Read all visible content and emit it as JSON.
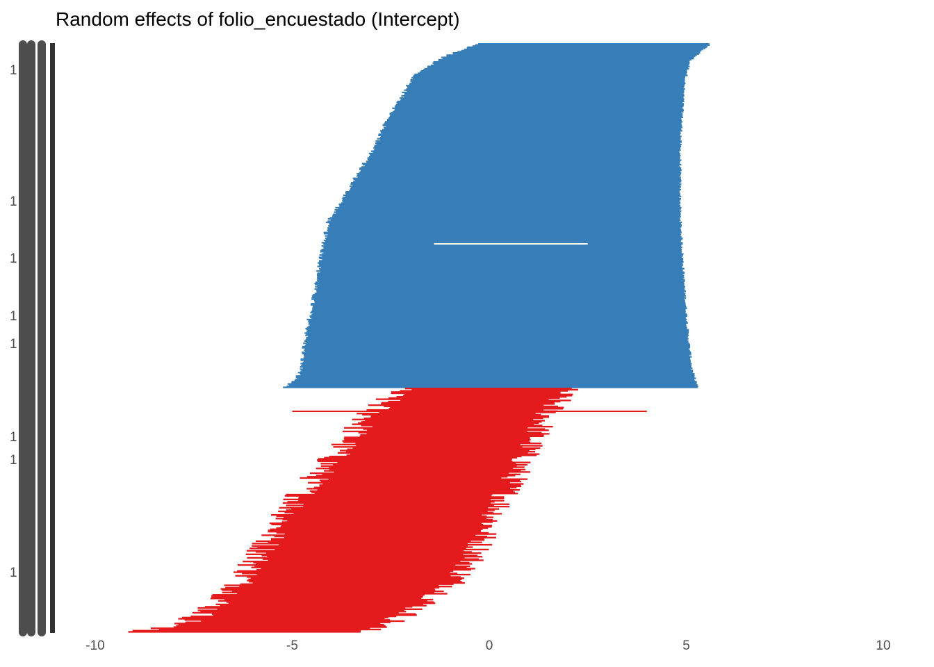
{
  "chart_data": {
    "type": "forest",
    "title": "Random effects of folio_encuestado (Intercept)",
    "xlabel": "",
    "ylabel": "",
    "xlim": [
      -10.0,
      10.0
    ],
    "x_ticks": [
      -10,
      -5,
      0,
      5,
      10
    ],
    "x_tick_labels": [
      "-10",
      "-5",
      "0",
      "5",
      "10"
    ],
    "grid": false,
    "legend": "none",
    "y_tick_labels_visible": [
      "1",
      "1",
      "1",
      "1",
      "1",
      "1",
      "1",
      "1"
    ],
    "series": [
      {
        "sign": "positive",
        "color": "#377eb8",
        "n_levels": 305,
        "ci_lower_profile": [
          {
            "rank": 0.0,
            "value": -0.3
          },
          {
            "rank": 0.04,
            "value": -1.2
          },
          {
            "rank": 0.09,
            "value": -1.9
          },
          {
            "rank": 0.17,
            "value": -2.3
          },
          {
            "rank": 0.22,
            "value": -2.6
          },
          {
            "rank": 0.3,
            "value": -2.9
          },
          {
            "rank": 0.37,
            "value": -3.3
          },
          {
            "rank": 0.45,
            "value": -3.7
          },
          {
            "rank": 0.52,
            "value": -4.1
          },
          {
            "rank": 0.58,
            "value": -4.2
          },
          {
            "rank": 0.64,
            "value": -4.3
          },
          {
            "rank": 0.76,
            "value": -4.5
          },
          {
            "rank": 0.88,
            "value": -4.7
          },
          {
            "rank": 0.96,
            "value": -4.8
          },
          {
            "rank": 1.0,
            "value": -5.2
          }
        ],
        "ci_upper_profile": [
          {
            "rank": 0.0,
            "value": 5.6
          },
          {
            "rank": 0.05,
            "value": 5.1
          },
          {
            "rank": 0.12,
            "value": 4.95
          },
          {
            "rank": 0.3,
            "value": 4.85
          },
          {
            "rank": 0.5,
            "value": 4.85
          },
          {
            "rank": 0.7,
            "value": 4.95
          },
          {
            "rank": 0.85,
            "value": 5.05
          },
          {
            "rank": 0.95,
            "value": 5.15
          },
          {
            "rank": 1.0,
            "value": 5.3
          }
        ]
      },
      {
        "sign": "negative",
        "color": "#e41a1c",
        "n_levels": 205,
        "ci_lower_profile": [
          {
            "rank": 0.0,
            "value": -2.3
          },
          {
            "rank": 0.1,
            "value": -3.0
          },
          {
            "rank": 0.25,
            "value": -3.8
          },
          {
            "rank": 0.4,
            "value": -4.6
          },
          {
            "rank": 0.55,
            "value": -5.3
          },
          {
            "rank": 0.7,
            "value": -5.9
          },
          {
            "rank": 0.82,
            "value": -6.4
          },
          {
            "rank": 0.92,
            "value": -7.2
          },
          {
            "rank": 0.97,
            "value": -7.8
          },
          {
            "rank": 1.0,
            "value": -9.2
          }
        ],
        "ci_upper_profile": [
          {
            "rank": 0.0,
            "value": 1.95
          },
          {
            "rank": 0.1,
            "value": 1.5
          },
          {
            "rank": 0.25,
            "value": 1.0
          },
          {
            "rank": 0.4,
            "value": 0.55
          },
          {
            "rank": 0.55,
            "value": 0.05
          },
          {
            "rank": 0.7,
            "value": -0.4
          },
          {
            "rank": 0.82,
            "value": -1.0
          },
          {
            "rank": 0.92,
            "value": -2.0
          },
          {
            "rank": 0.97,
            "value": -2.6
          },
          {
            "rank": 1.0,
            "value": -3.3
          }
        ]
      }
    ],
    "highlighted_intervals": [
      {
        "sign": "positive",
        "color": "#ffffff",
        "lower": -1.4,
        "upper": 2.5
      },
      {
        "sign": "negative",
        "color": "#e41a1c",
        "lower": -5.0,
        "upper": 4.0
      }
    ]
  }
}
